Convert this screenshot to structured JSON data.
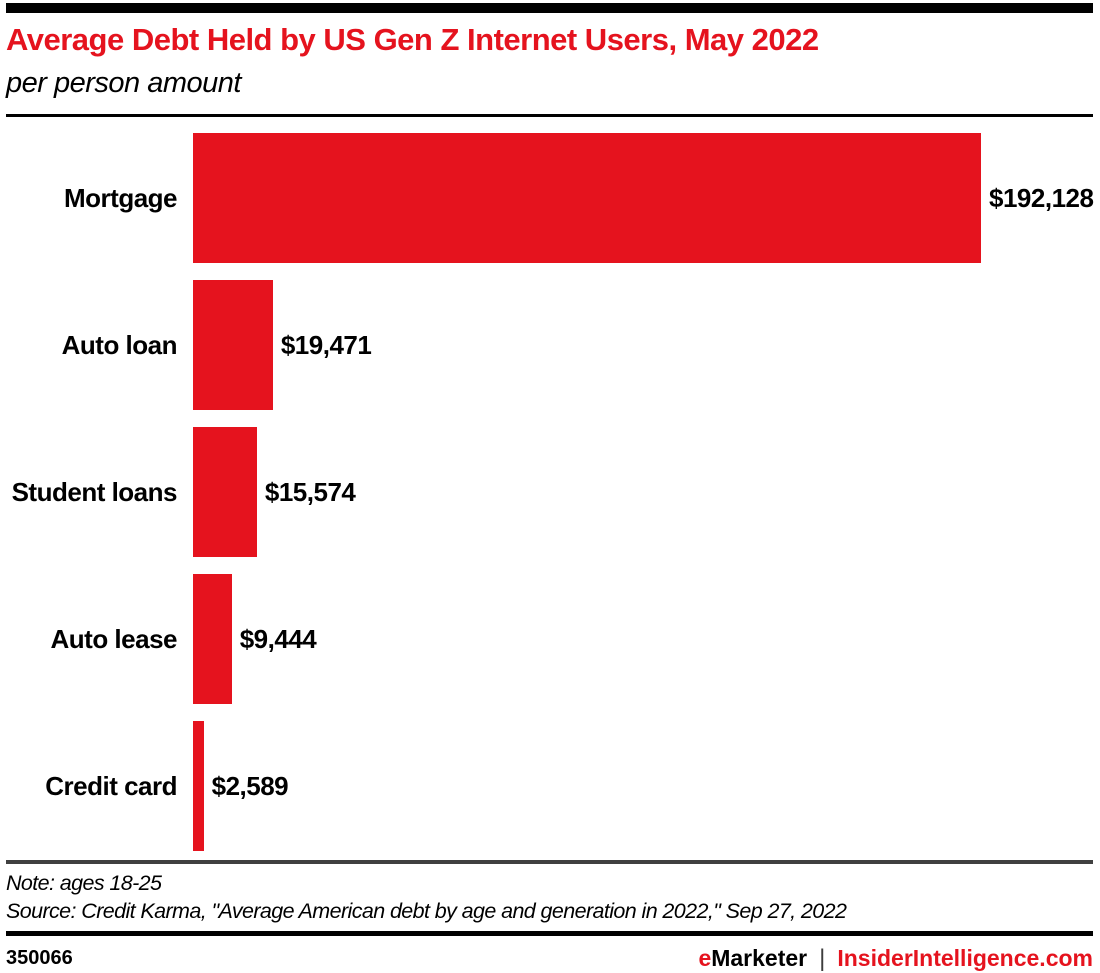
{
  "header": {
    "title": "Average Debt Held by US Gen Z Internet Users, May 2022",
    "subtitle": "per person amount"
  },
  "chart_data": {
    "type": "bar",
    "orientation": "horizontal",
    "title": "Average Debt Held by US Gen Z Internet Users, May 2022",
    "subtitle": "per person amount",
    "categories": [
      "Mortgage",
      "Auto loan",
      "Student loans",
      "Auto lease",
      "Credit card"
    ],
    "values": [
      192128,
      19471,
      15574,
      9444,
      2589
    ],
    "value_labels": [
      "$192,128",
      "$19,471",
      "$15,574",
      "$9,444",
      "$2,589"
    ],
    "xlim": [
      0,
      192128
    ],
    "bar_color": "#e5131e",
    "value_label_position": "right-of-bar",
    "grid": false,
    "legend": false
  },
  "footnotes": {
    "note": "Note: ages 18-25",
    "source": "Source: Credit Karma, \"Average American debt by age and generation in 2022,\" Sep 27, 2022"
  },
  "footer": {
    "chart_id": "350066",
    "brand_prefix": "e",
    "brand_name": "Marketer",
    "separator": "|",
    "site": "InsiderIntelligence.com"
  },
  "colors": {
    "accent_red": "#e5131e",
    "rule_dark_gray": "#404040",
    "rule_black": "#000000"
  }
}
